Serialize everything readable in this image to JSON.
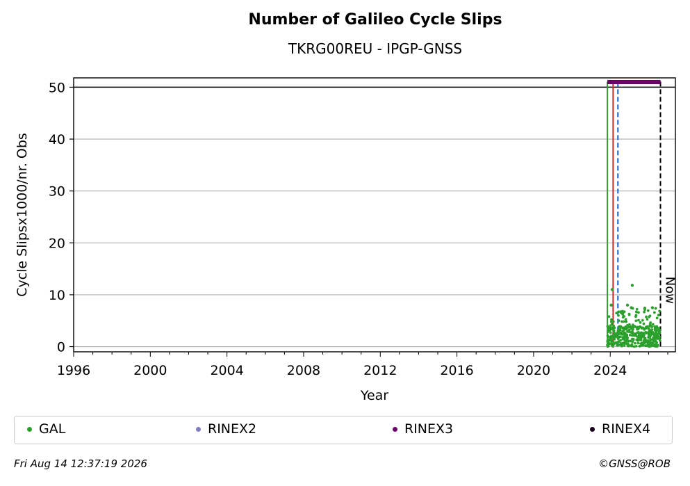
{
  "chart_data": {
    "type": "scatter",
    "title": "Number of Galileo Cycle Slips",
    "subtitle": "TKRG00REU - IPGP-GNSS",
    "xlabel": "Year",
    "ylabel": "Cycle Slipsx1000/nr. Obs",
    "xlim": [
      1996,
      2027.4
    ],
    "ylim": [
      -1,
      51.8
    ],
    "xticks": [
      "1996",
      "2000",
      "2004",
      "2008",
      "2012",
      "2016",
      "2020",
      "2024"
    ],
    "yticks": [
      "0",
      "10",
      "20",
      "30",
      "40",
      "50"
    ],
    "grid": "horizontal",
    "hline": 50,
    "vlines": [
      {
        "x": 2023.85,
        "color": "#2ca02c",
        "style": "solid"
      },
      {
        "x": 2024.15,
        "color": "#d62728",
        "style": "solid"
      },
      {
        "x": 2024.4,
        "color": "#1f5fbf",
        "style": "dashed"
      },
      {
        "x": 2026.62,
        "color": "#000000",
        "style": "dashed",
        "label": "Now"
      }
    ],
    "series": [
      {
        "name": "GAL",
        "color": "#2ca02c",
        "x_range": [
          2023.85,
          2026.6
        ],
        "y_typical": [
          0,
          4
        ],
        "y_max": 11.8,
        "outliers": [
          [
            2024.1,
            11
          ],
          [
            2025.15,
            11.8
          ],
          [
            2024.05,
            8
          ],
          [
            2024.9,
            8
          ],
          [
            2025.1,
            7.5
          ],
          [
            2025.8,
            7.4
          ],
          [
            2026.2,
            7.5
          ]
        ]
      },
      {
        "name": "RINEX2",
        "color": "#8080bf"
      },
      {
        "name": "RINEX3",
        "color": "#6a006a",
        "segment": [
          2023.85,
          2026.62
        ],
        "y": 51
      },
      {
        "name": "RINEX4",
        "color": "#1a0020"
      }
    ]
  },
  "footer": {
    "date": "Fri Aug 14 12:37:19 2026",
    "credit": "©GNSS@ROB"
  }
}
